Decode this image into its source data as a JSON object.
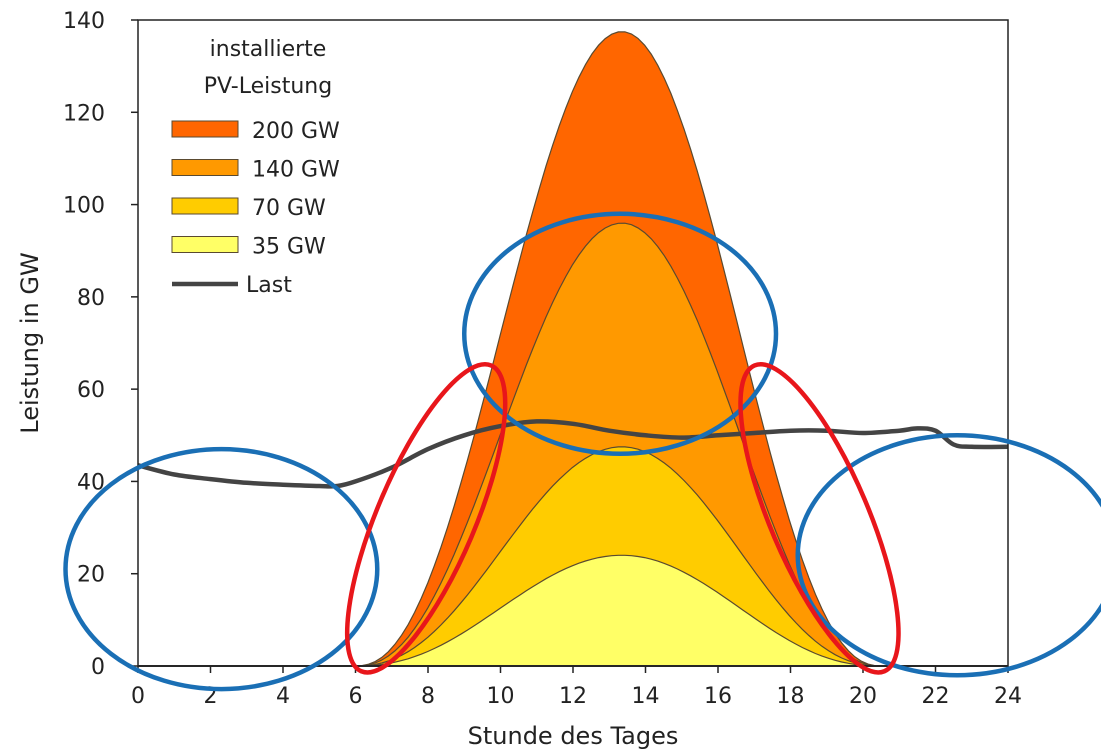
{
  "chart_data": {
    "type": "area",
    "xlabel": "Stunde des Tages",
    "ylabel": "Leistung in GW",
    "xlim": [
      0,
      24
    ],
    "ylim": [
      0,
      140
    ],
    "xticks": [
      0,
      2,
      4,
      6,
      8,
      10,
      12,
      14,
      16,
      18,
      20,
      22,
      24
    ],
    "yticks": [
      0,
      20,
      40,
      60,
      80,
      100,
      120,
      140
    ],
    "grid": false,
    "legend": {
      "placement": "top-left",
      "title_line1": "installierte",
      "title_line2": "PV-Leistung"
    },
    "series": [
      {
        "name": "200 GW",
        "color": "#ff6600",
        "peak": 137.5,
        "start": 6.0,
        "end": 20.5,
        "center": 13.35
      },
      {
        "name": "140 GW",
        "color": "#ff9900",
        "peak": 96,
        "start": 6.0,
        "end": 20.5,
        "center": 13.35
      },
      {
        "name": "70 GW",
        "color": "#ffcc00",
        "peak": 47.5,
        "start": 6.0,
        "end": 20.5,
        "center": 13.35
      },
      {
        "name": "35 GW",
        "color": "#ffff66",
        "peak": 24,
        "start": 6.0,
        "end": 20.5,
        "center": 13.35
      }
    ],
    "load": {
      "name": "Last",
      "color": "#444444",
      "x": [
        0,
        1,
        2,
        3,
        4,
        5,
        5.5,
        6,
        7,
        8,
        9,
        10,
        11,
        12,
        13,
        14,
        15,
        16,
        17,
        18,
        19,
        20,
        21,
        21.5,
        22,
        22.5,
        23,
        24
      ],
      "y": [
        43.5,
        41.5,
        40.5,
        39.7,
        39.3,
        39,
        39,
        40,
        43,
        47,
        50,
        52,
        53,
        52.5,
        51,
        50,
        49.5,
        50,
        50.5,
        51,
        51,
        50.5,
        51,
        51.5,
        51,
        48,
        47.5,
        47.5
      ]
    },
    "annotations": [
      {
        "shape": "ellipse",
        "color": "#1a6fb5",
        "cx": 2.3,
        "cy": 21,
        "rx": 4.3,
        "ry": 26
      },
      {
        "shape": "ellipse",
        "color": "#1a6fb5",
        "cx": 13.3,
        "cy": 72,
        "rx": 4.3,
        "ry": 26
      },
      {
        "shape": "ellipse",
        "color": "#1a6fb5",
        "cx": 22.6,
        "cy": 24,
        "rx": 4.4,
        "ry": 26
      },
      {
        "shape": "ellipse",
        "color": "#e8161b",
        "cx": 7.95,
        "cy": 32,
        "rx": 1.35,
        "ry": 36,
        "rotate": 23
      },
      {
        "shape": "ellipse",
        "color": "#e8161b",
        "cx": 18.8,
        "cy": 32,
        "rx": 1.35,
        "ry": 36,
        "rotate": -23
      }
    ]
  }
}
